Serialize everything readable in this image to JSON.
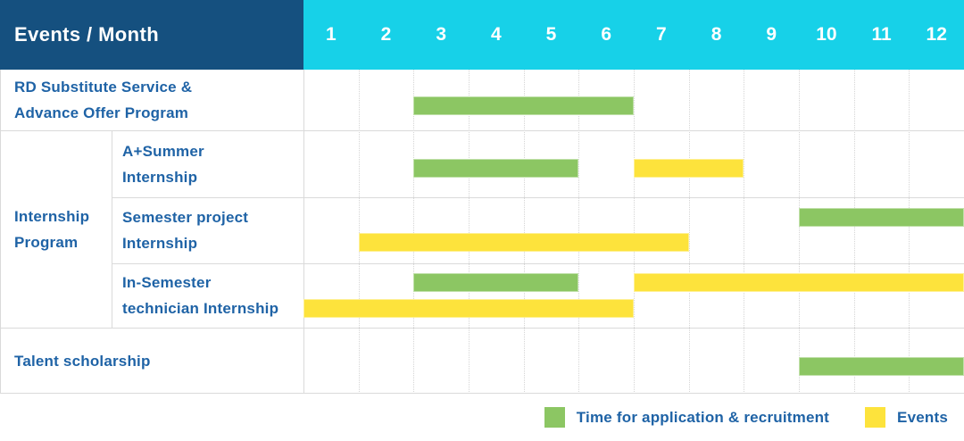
{
  "header": {
    "title": "Events / Month",
    "months": [
      "1",
      "2",
      "3",
      "4",
      "5",
      "6",
      "7",
      "8",
      "9",
      "10",
      "11",
      "12"
    ]
  },
  "colors": {
    "header_bg": "#15507F",
    "months_bg": "#17D1E8",
    "header_text": "#FFFFFF",
    "label_text": "#1F63A6",
    "bar_green": "#8CC663",
    "bar_yellow": "#FDE33C",
    "grid_solid": "#DADADA",
    "grid_dotted": "#D5D5D5"
  },
  "group": {
    "label": "Internship\nProgram"
  },
  "rows": [
    {
      "label": "RD Substitute Service &\nAdvance Offer Program",
      "in_group": false,
      "bars": [
        {
          "type": "green",
          "start": 3,
          "end": 6,
          "lane": 0
        }
      ]
    },
    {
      "label": "A+Summer\nInternship",
      "in_group": true,
      "bars": [
        {
          "type": "green",
          "start": 3,
          "end": 5,
          "lane": 0
        },
        {
          "type": "yellow",
          "start": 7,
          "end": 8,
          "lane": 0
        }
      ]
    },
    {
      "label": "Semester project\nInternship",
      "in_group": true,
      "bars": [
        {
          "type": "green",
          "start": 10,
          "end": 12,
          "lane": 0
        },
        {
          "type": "yellow",
          "start": 2,
          "end": 7,
          "lane": 1
        }
      ]
    },
    {
      "label": "In-Semester\ntechnician Internship",
      "in_group": true,
      "bars": [
        {
          "type": "green",
          "start": 3,
          "end": 5,
          "lane": 0
        },
        {
          "type": "yellow",
          "start": 7,
          "end": 12,
          "lane": 0
        },
        {
          "type": "yellow",
          "start": 1,
          "end": 6,
          "lane": 1
        }
      ]
    },
    {
      "label": "Talent scholarship",
      "in_group": false,
      "bars": [
        {
          "type": "green",
          "start": 10,
          "end": 12,
          "lane": 0
        }
      ]
    }
  ],
  "legend": {
    "items": [
      {
        "label": "Time for application & recruitment",
        "type": "green"
      },
      {
        "label": "Events",
        "type": "yellow"
      }
    ]
  },
  "chart_data": {
    "type": "table",
    "subtype": "gantt",
    "title": "Events / Month",
    "x_axis": {
      "label": "Month",
      "ticks": [
        1,
        2,
        3,
        4,
        5,
        6,
        7,
        8,
        9,
        10,
        11,
        12
      ],
      "range": [
        1,
        12
      ]
    },
    "grid": true,
    "legend_position": "bottom-right",
    "tasks": [
      {
        "group": null,
        "name": "RD Substitute Service & Advance Offer Program",
        "application_recruitment_months": [
          [
            3,
            6
          ]
        ],
        "events_months": []
      },
      {
        "group": "Internship Program",
        "name": "A+Summer Internship",
        "application_recruitment_months": [
          [
            3,
            5
          ]
        ],
        "events_months": [
          [
            7,
            8
          ]
        ]
      },
      {
        "group": "Internship Program",
        "name": "Semester project Internship",
        "application_recruitment_months": [
          [
            10,
            12
          ]
        ],
        "events_months": [
          [
            2,
            7
          ]
        ]
      },
      {
        "group": "Internship Program",
        "name": "In-Semester technician Internship",
        "application_recruitment_months": [
          [
            3,
            5
          ]
        ],
        "events_months": [
          [
            7,
            12
          ],
          [
            1,
            6
          ]
        ]
      },
      {
        "group": null,
        "name": "Talent scholarship",
        "application_recruitment_months": [
          [
            10,
            12
          ]
        ],
        "events_months": []
      }
    ],
    "series_legend": [
      {
        "name": "Time for application & recruitment",
        "color": "#8CC663"
      },
      {
        "name": "Events",
        "color": "#FDE33C"
      }
    ]
  }
}
